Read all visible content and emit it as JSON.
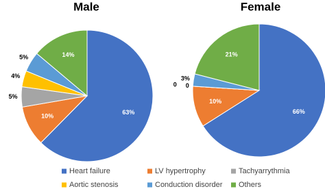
{
  "chart_data": [
    {
      "type": "pie",
      "title": "Male",
      "categories": [
        "Heart failure",
        "LV hypertrophy",
        "Tachyarrythmia",
        "Aortic stenosis",
        "Conduction disorder",
        "Others"
      ],
      "colors": [
        "#4472c4",
        "#ed7d31",
        "#a5a5a5",
        "#ffc000",
        "#5b9bd5",
        "#70ad47"
      ],
      "values": [
        63,
        10,
        5,
        4,
        5,
        14
      ],
      "value_labels": [
        "63%",
        "10%",
        "5%",
        "4%",
        "5%",
        "14%"
      ]
    },
    {
      "type": "pie",
      "title": "Female",
      "categories": [
        "Heart failure",
        "LV hypertrophy",
        "Tachyarrythmia",
        "Aortic stenosis",
        "Conduction disorder",
        "Others"
      ],
      "colors": [
        "#4472c4",
        "#ed7d31",
        "#a5a5a5",
        "#ffc000",
        "#5b9bd5",
        "#70ad47"
      ],
      "values": [
        66,
        10,
        0,
        0,
        3,
        21
      ],
      "value_labels": [
        "66%",
        "10%",
        "0",
        "0",
        "3%",
        "21%"
      ]
    }
  ]
}
